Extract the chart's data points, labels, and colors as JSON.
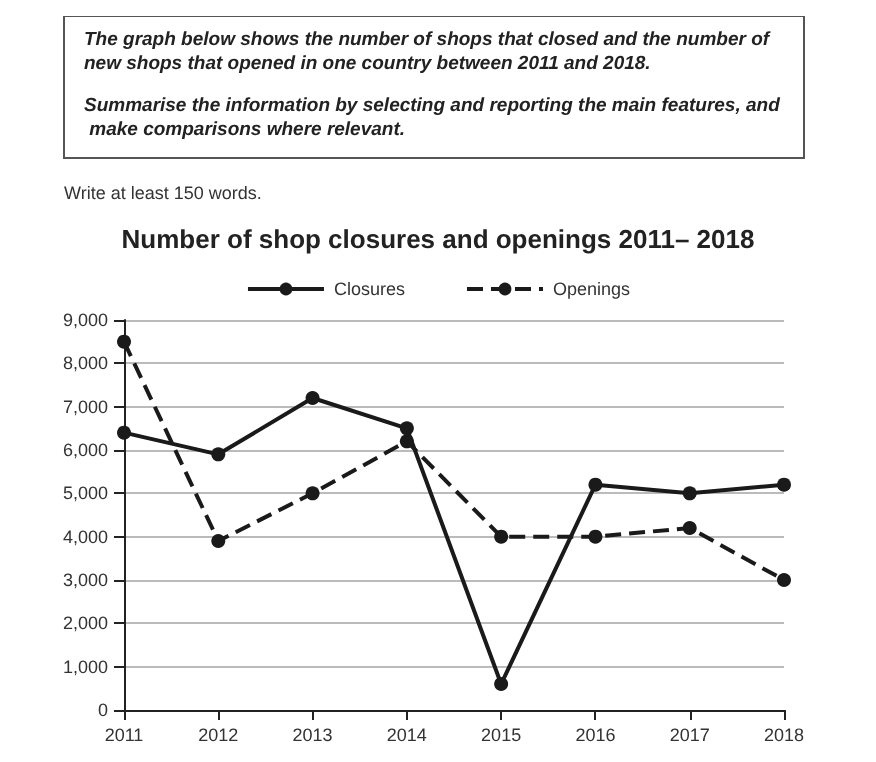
{
  "chart_data": {
    "type": "line",
    "title": "Number of shop closures and openings 2011– 2018",
    "annotations": [
      "The graph below shows the number of shops that closed and the number of new shops that opened in one country between 2011 and 2018.",
      "Summarise the information by selecting and reporting the main features, and make comparisons where relevant.",
      "Write at least 150 words."
    ],
    "categories": [
      "2011",
      "2012",
      "2013",
      "2014",
      "2015",
      "2016",
      "2017",
      "2018"
    ],
    "series": [
      {
        "name": "Closures",
        "color": "#1a1a1a",
        "line_style": "solid",
        "values": [
          6400,
          5900,
          7200,
          6500,
          600,
          5200,
          5000,
          5200
        ]
      },
      {
        "name": "Openings",
        "color": "#1a1a1a",
        "line_style": "dashed",
        "values": [
          8500,
          3900,
          5000,
          6200,
          4000,
          4000,
          4200,
          3000
        ]
      }
    ],
    "ylim": [
      0,
      9000
    ],
    "yticks": [
      0,
      {
        "value": 1000,
        "label": "1,000"
      },
      {
        "value": 2000,
        "label": "2,000"
      },
      {
        "value": 3000,
        "label": "3,000"
      },
      {
        "value": 4000,
        "label": "4,000"
      },
      {
        "value": 5000,
        "label": "5,000"
      },
      {
        "value": 6000,
        "label": "6,000"
      },
      {
        "value": 7000,
        "label": "7,000"
      },
      {
        "value": 8000,
        "label": "8,000"
      },
      {
        "value": 9000,
        "label": "9,000"
      }
    ],
    "grid": "y",
    "legend": "top",
    "marker": "circle"
  }
}
